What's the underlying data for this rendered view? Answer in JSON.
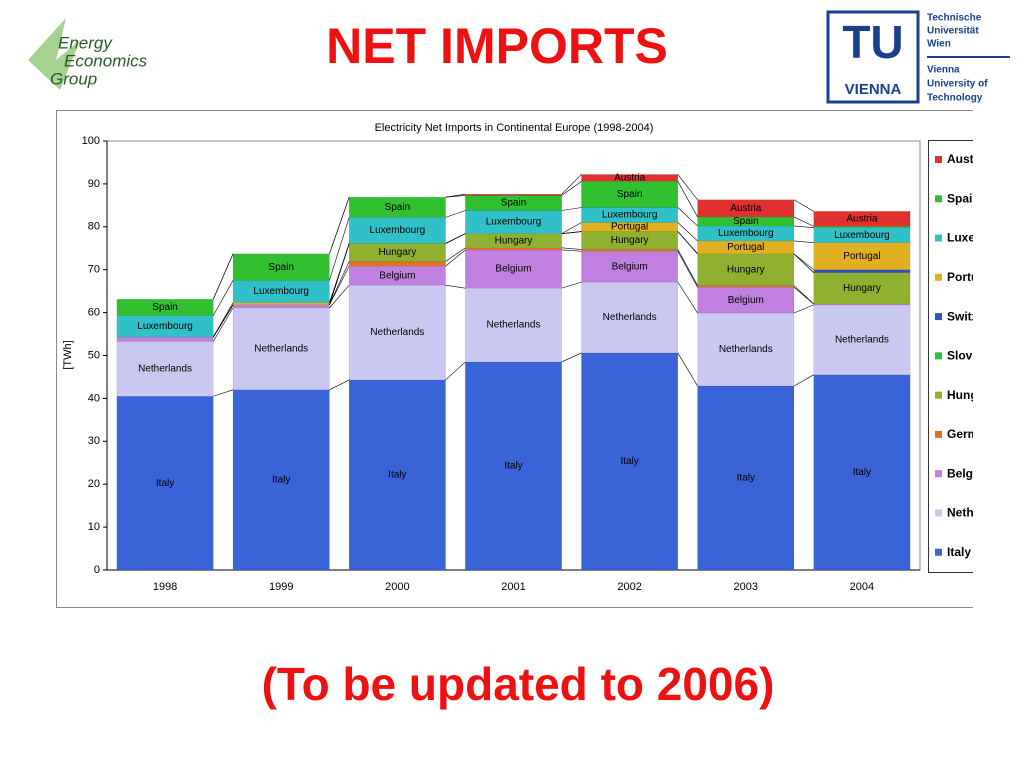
{
  "slide": {
    "title": "NET IMPORTS",
    "footer": "(To be updated to 2006)"
  },
  "logos": {
    "eeg": [
      "Energy",
      "Economics",
      "Group"
    ],
    "tu_mark": "TU",
    "tu_city": "VIENNA",
    "tu_text": [
      "Technische",
      "Universität",
      "Wien",
      "Vienna",
      "University of",
      "Technology"
    ]
  },
  "chart_data": {
    "type": "stacked_bar",
    "title": "Electricity Net Imports in Continental Europe (1998-2004)",
    "y_label": "[TWh]",
    "categories": [
      "1998",
      "1999",
      "2000",
      "2001",
      "2002",
      "2003",
      "2004"
    ],
    "ylim": [
      0,
      100
    ],
    "yticks": [
      0,
      10,
      20,
      30,
      40,
      50,
      60,
      70,
      80,
      90,
      100
    ],
    "grid": false,
    "legend": "right",
    "series": [
      {
        "name": "Italy",
        "color": "#3a63d8",
        "values": [
          40.5,
          42,
          44.3,
          48.5,
          50.6,
          42.9,
          45.5
        ]
      },
      {
        "name": "Netherlands",
        "color": "#c8c8f0",
        "values": [
          12.8,
          19.1,
          22.1,
          17.2,
          16.5,
          17.0,
          16.3
        ]
      },
      {
        "name": "Belgium",
        "color": "#c080e0",
        "values": [
          1.0,
          0.7,
          4.4,
          8.9,
          7.2,
          6.0,
          0.2
        ]
      },
      {
        "name": "Germany",
        "color": "#e07030",
        "values": [
          0,
          0,
          1.1,
          0.5,
          0.4,
          0.4,
          0
        ]
      },
      {
        "name": "Hungary",
        "color": "#90b030",
        "values": [
          0,
          0,
          4.2,
          3.3,
          4.2,
          7.4,
          7.3
        ]
      },
      {
        "name": "Slovenia",
        "color": "#30c040",
        "values": [
          0,
          0,
          0,
          0,
          0,
          0,
          0
        ]
      },
      {
        "name": "Switzerland",
        "color": "#3050c0",
        "values": [
          0,
          0,
          0,
          0,
          0,
          0,
          0.7
        ]
      },
      {
        "name": "Portugal",
        "color": "#e0b020",
        "values": [
          0,
          0.5,
          0,
          0,
          2.1,
          3.0,
          6.3
        ]
      },
      {
        "name": "Luxembourg",
        "color": "#30c0c8",
        "values": [
          5.0,
          5.2,
          6.1,
          5.4,
          3.5,
          3.5,
          3.5
        ]
      },
      {
        "name": "Spain",
        "color": "#30c030",
        "values": [
          3.8,
          6.2,
          4.7,
          3.5,
          6.1,
          2.1,
          0.3
        ]
      },
      {
        "name": "Austria",
        "color": "#e03030",
        "values": [
          0,
          0,
          0,
          0.3,
          1.6,
          4.0,
          3.5
        ]
      }
    ]
  }
}
